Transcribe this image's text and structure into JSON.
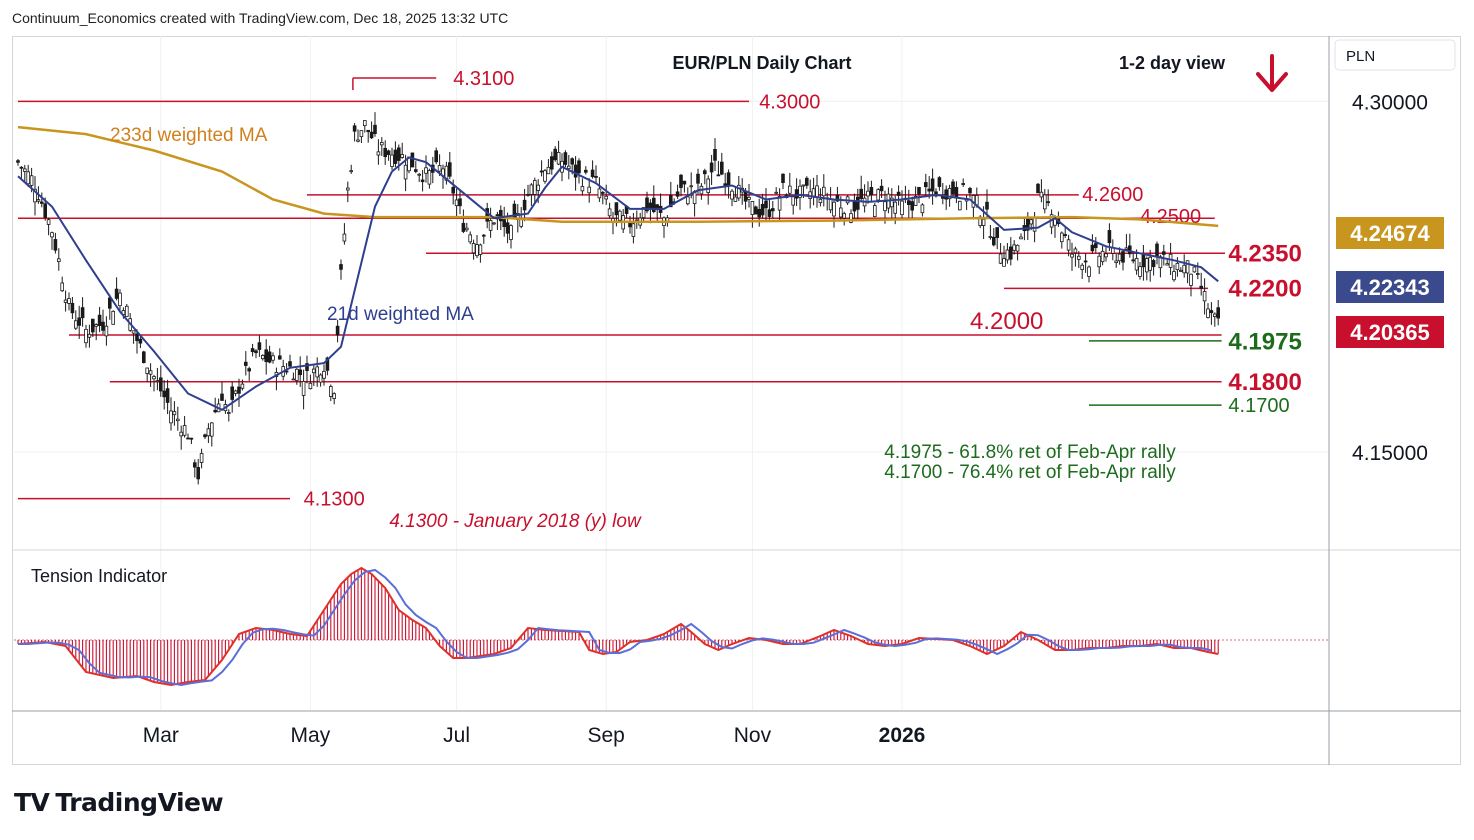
{
  "header": "Continuum_Economics created with TradingView.com, Dec 18, 2025 13:32 UTC",
  "footer_logo": "TradingView",
  "footer_logo_mark": "TV",
  "chart_data": {
    "type": "candlestick",
    "title": "EUR/PLN Daily Chart",
    "view_label": "1-2 day view",
    "view_direction": "down",
    "currency": "PLN",
    "x_ticks": [
      "Mar",
      "May",
      "Jul",
      "Sep",
      "Nov",
      "2026"
    ],
    "y_ticks": [
      "4.30000",
      "4.15000"
    ],
    "price_badges": [
      {
        "label": "4.24674",
        "color": "#c8961e",
        "series": "233d weighted MA"
      },
      {
        "label": "4.22343",
        "color": "#3a4a8c",
        "series": "21d weighted MA"
      },
      {
        "label": "4.20365",
        "color": "#c8102e",
        "series": "last price"
      }
    ],
    "levels": [
      {
        "value": 4.31,
        "label": "4.3100",
        "type": "resistance"
      },
      {
        "value": 4.3,
        "label": "4.3000",
        "type": "resistance"
      },
      {
        "value": 4.26,
        "label": "4.2600",
        "type": "resistance"
      },
      {
        "value": 4.25,
        "label": "4.2500",
        "type": "resistance"
      },
      {
        "value": 4.235,
        "label": "4.2350",
        "type": "resistance"
      },
      {
        "value": 4.22,
        "label": "4.2200",
        "type": "resistance"
      },
      {
        "value": 4.2,
        "label": "4.2000",
        "type": "support"
      },
      {
        "value": 4.1975,
        "label": "4.1975",
        "type": "retracement"
      },
      {
        "value": 4.18,
        "label": "4.1800",
        "type": "support"
      },
      {
        "value": 4.17,
        "label": "4.1700",
        "type": "retracement"
      },
      {
        "value": 4.13,
        "label": "4.1300",
        "type": "support"
      }
    ],
    "series_labels": {
      "ma233": "233d weighted MA",
      "ma21": "21d weighted MA",
      "indicator": "Tension Indicator"
    },
    "annotations": [
      "4.1975 - 61.8% ret of Feb-Apr rally",
      "4.1700 - 76.4% ret of Feb-Apr rally",
      "4.1300 - January 2018 (y) low"
    ],
    "close_path": [
      [
        0,
        4.274
      ],
      [
        5,
        4.265
      ],
      [
        10,
        4.245
      ],
      [
        15,
        4.212
      ],
      [
        20,
        4.202
      ],
      [
        25,
        4.205
      ],
      [
        30,
        4.218
      ],
      [
        35,
        4.198
      ],
      [
        40,
        4.182
      ],
      [
        45,
        4.168
      ],
      [
        50,
        4.158
      ],
      [
        53,
        4.14
      ],
      [
        56,
        4.16
      ],
      [
        60,
        4.175
      ],
      [
        62,
        4.165
      ],
      [
        65,
        4.178
      ],
      [
        70,
        4.192
      ],
      [
        75,
        4.188
      ],
      [
        80,
        4.186
      ],
      [
        85,
        4.182
      ],
      [
        90,
        4.188
      ],
      [
        93,
        4.178
      ],
      [
        95,
        4.225
      ],
      [
        97,
        4.262
      ],
      [
        99,
        4.285
      ],
      [
        102,
        4.29
      ],
      [
        106,
        4.28
      ],
      [
        110,
        4.278
      ],
      [
        115,
        4.275
      ],
      [
        120,
        4.268
      ],
      [
        125,
        4.272
      ],
      [
        128,
        4.262
      ],
      [
        131,
        4.248
      ],
      [
        135,
        4.24
      ],
      [
        140,
        4.25
      ],
      [
        145,
        4.243
      ],
      [
        150,
        4.26
      ],
      [
        155,
        4.272
      ],
      [
        160,
        4.275
      ],
      [
        165,
        4.268
      ],
      [
        170,
        4.265
      ],
      [
        175,
        4.25
      ],
      [
        180,
        4.248
      ],
      [
        185,
        4.255
      ],
      [
        190,
        4.25
      ],
      [
        195,
        4.262
      ],
      [
        200,
        4.262
      ],
      [
        205,
        4.272
      ],
      [
        210,
        4.265
      ],
      [
        215,
        4.255
      ],
      [
        220,
        4.252
      ],
      [
        225,
        4.262
      ],
      [
        230,
        4.26
      ],
      [
        235,
        4.262
      ],
      [
        240,
        4.257
      ],
      [
        245,
        4.255
      ],
      [
        250,
        4.258
      ],
      [
        255,
        4.26
      ],
      [
        260,
        4.255
      ],
      [
        265,
        4.258
      ],
      [
        270,
        4.262
      ],
      [
        275,
        4.262
      ],
      [
        280,
        4.26
      ],
      [
        285,
        4.25
      ],
      [
        288,
        4.238
      ],
      [
        292,
        4.235
      ],
      [
        296,
        4.242
      ],
      [
        300,
        4.258
      ],
      [
        304,
        4.255
      ],
      [
        307,
        4.245
      ],
      [
        310,
        4.235
      ],
      [
        315,
        4.232
      ],
      [
        320,
        4.236
      ],
      [
        325,
        4.234
      ],
      [
        330,
        4.232
      ],
      [
        335,
        4.233
      ],
      [
        340,
        4.23
      ],
      [
        345,
        4.228
      ],
      [
        348,
        4.22
      ],
      [
        351,
        4.208
      ],
      [
        353,
        4.204
      ]
    ],
    "ma21_path": [
      [
        0,
        4.268
      ],
      [
        10,
        4.255
      ],
      [
        20,
        4.232
      ],
      [
        30,
        4.21
      ],
      [
        40,
        4.193
      ],
      [
        50,
        4.175
      ],
      [
        60,
        4.168
      ],
      [
        70,
        4.178
      ],
      [
        80,
        4.186
      ],
      [
        90,
        4.188
      ],
      [
        95,
        4.195
      ],
      [
        100,
        4.225
      ],
      [
        105,
        4.255
      ],
      [
        110,
        4.27
      ],
      [
        115,
        4.276
      ],
      [
        120,
        4.274
      ],
      [
        130,
        4.262
      ],
      [
        140,
        4.25
      ],
      [
        150,
        4.252
      ],
      [
        155,
        4.263
      ],
      [
        160,
        4.272
      ],
      [
        170,
        4.265
      ],
      [
        180,
        4.254
      ],
      [
        190,
        4.254
      ],
      [
        200,
        4.262
      ],
      [
        210,
        4.264
      ],
      [
        220,
        4.258
      ],
      [
        230,
        4.26
      ],
      [
        240,
        4.258
      ],
      [
        250,
        4.257
      ],
      [
        260,
        4.258
      ],
      [
        270,
        4.26
      ],
      [
        280,
        4.258
      ],
      [
        290,
        4.245
      ],
      [
        300,
        4.246
      ],
      [
        305,
        4.25
      ],
      [
        310,
        4.244
      ],
      [
        320,
        4.238
      ],
      [
        330,
        4.235
      ],
      [
        340,
        4.232
      ],
      [
        348,
        4.229
      ],
      [
        353,
        4.223
      ]
    ],
    "ma233_path": [
      [
        0,
        4.289
      ],
      [
        20,
        4.286
      ],
      [
        40,
        4.279
      ],
      [
        60,
        4.27
      ],
      [
        75,
        4.258
      ],
      [
        90,
        4.252
      ],
      [
        105,
        4.2505
      ],
      [
        140,
        4.2505
      ],
      [
        160,
        4.2485
      ],
      [
        200,
        4.2485
      ],
      [
        240,
        4.249
      ],
      [
        280,
        4.25
      ],
      [
        310,
        4.2505
      ],
      [
        330,
        4.2495
      ],
      [
        353,
        4.2467
      ]
    ],
    "tension_path": [
      [
        0,
        -0.2
      ],
      [
        8,
        -0.1
      ],
      [
        14,
        -0.3
      ],
      [
        20,
        -1.6
      ],
      [
        28,
        -1.9
      ],
      [
        35,
        -1.8
      ],
      [
        40,
        -2.1
      ],
      [
        45,
        -2.25
      ],
      [
        50,
        -2.1
      ],
      [
        55,
        -2.0
      ],
      [
        60,
        -1.0
      ],
      [
        65,
        0.3
      ],
      [
        70,
        0.6
      ],
      [
        75,
        0.5
      ],
      [
        80,
        0.3
      ],
      [
        85,
        0.2
      ],
      [
        90,
        1.5
      ],
      [
        95,
        2.8
      ],
      [
        98,
        3.3
      ],
      [
        101,
        3.6
      ],
      [
        104,
        3.3
      ],
      [
        108,
        2.6
      ],
      [
        112,
        1.5
      ],
      [
        116,
        1.0
      ],
      [
        120,
        0.6
      ],
      [
        124,
        -0.3
      ],
      [
        128,
        -0.9
      ],
      [
        132,
        -0.9
      ],
      [
        136,
        -0.8
      ],
      [
        140,
        -0.7
      ],
      [
        145,
        -0.4
      ],
      [
        150,
        0.6
      ],
      [
        155,
        0.5
      ],
      [
        160,
        0.45
      ],
      [
        165,
        0.4
      ],
      [
        168,
        -0.5
      ],
      [
        172,
        -0.7
      ],
      [
        176,
        -0.6
      ],
      [
        180,
        -0.1
      ],
      [
        185,
        0.0
      ],
      [
        190,
        0.3
      ],
      [
        195,
        0.8
      ],
      [
        198,
        0.4
      ],
      [
        202,
        -0.2
      ],
      [
        206,
        -0.5
      ],
      [
        210,
        -0.2
      ],
      [
        215,
        0.1
      ],
      [
        220,
        0.0
      ],
      [
        225,
        -0.2
      ],
      [
        230,
        -0.2
      ],
      [
        236,
        0.2
      ],
      [
        240,
        0.5
      ],
      [
        245,
        0.2
      ],
      [
        250,
        -0.2
      ],
      [
        255,
        -0.3
      ],
      [
        260,
        -0.2
      ],
      [
        265,
        0.1
      ],
      [
        270,
        0.05
      ],
      [
        275,
        0.0
      ],
      [
        280,
        -0.3
      ],
      [
        285,
        -0.7
      ],
      [
        290,
        -0.3
      ],
      [
        295,
        0.4
      ],
      [
        300,
        0.0
      ],
      [
        305,
        -0.5
      ],
      [
        310,
        -0.5
      ],
      [
        315,
        -0.4
      ],
      [
        320,
        -0.4
      ],
      [
        325,
        -0.3
      ],
      [
        330,
        -0.3
      ],
      [
        335,
        -0.2
      ],
      [
        340,
        -0.4
      ],
      [
        345,
        -0.4
      ],
      [
        350,
        -0.6
      ],
      [
        353,
        -0.7
      ]
    ],
    "ylim": [
      4.108,
      4.328
    ],
    "indicator_ylim": [
      -3.5,
      4.4
    ],
    "bars": 354,
    "x_tick_bars": [
      42,
      86,
      129,
      173,
      216,
      260
    ]
  }
}
